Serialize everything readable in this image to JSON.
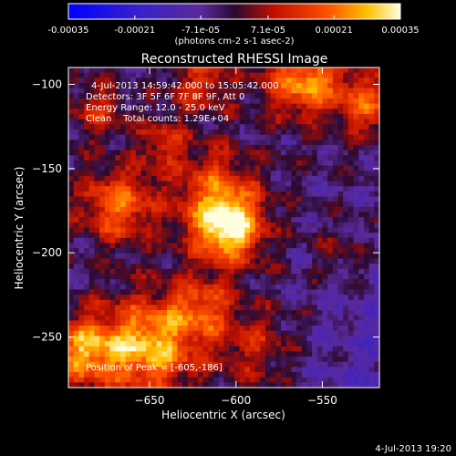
{
  "chart_data": {
    "type": "heatmap",
    "title": "Reconstructed RHESSI Image",
    "xlabel": "Heliocentric X (arcsec)",
    "ylabel": "Heliocentric Y (arcsec)",
    "xlim": [
      -697,
      -517
    ],
    "ylim": [
      -280,
      -90
    ],
    "x_ticks": [
      -650,
      -600,
      -550
    ],
    "y_ticks": [
      -100,
      -150,
      -200,
      -250
    ],
    "colorbar": {
      "min": -0.00035,
      "max": 0.00035,
      "ticks": [
        -0.00035,
        -0.00021,
        -7.1e-05,
        7.1e-05,
        0.00021,
        0.00035
      ],
      "tick_labels": [
        "-0.00035",
        "-0.00021",
        "-7.1e-05",
        "7.1e-05",
        "0.00021",
        "0.00035"
      ],
      "unit_label": "(photons cm-2 s-1 asec-2)"
    },
    "annotations": {
      "time_range": "4-Jul-2013 14:59:42.000 to 15:05:42.000",
      "detectors": "Detectors: 3F 5F 6F 7F 8F 9F, Att 0",
      "energy": "Energy Range: 12.0 - 25.0 keV",
      "clean": "Clean    Total counts: 1.29E+04",
      "peak": "Position of Peak = [-605,-186]"
    },
    "peak_position": [
      -605,
      -186
    ],
    "colors": {
      "background": "#000000",
      "low": "#0000ff",
      "negative_mid": "#5a2a9a",
      "zero": "#2a0a30",
      "positive_mid": "#ff3000",
      "high": "#ffffe0"
    }
  },
  "footer_timestamp": "4-Jul-2013 19:20"
}
